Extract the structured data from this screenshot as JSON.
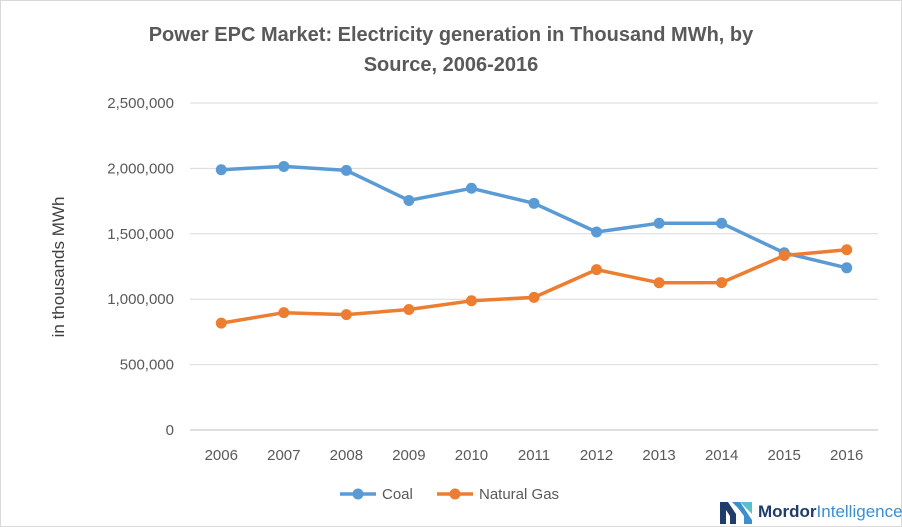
{
  "chart_data": {
    "type": "line",
    "title_lines": [
      "Power EPC Market: Electricity generation in Thousand  MWh, by",
      "Source, 2006-2016"
    ],
    "xlabel": "",
    "ylabel": "in thousands MWh",
    "categories": [
      "2006",
      "2007",
      "2008",
      "2009",
      "2010",
      "2011",
      "2012",
      "2013",
      "2014",
      "2015",
      "2016"
    ],
    "series": [
      {
        "name": "Coal",
        "color": "#5b9bd5",
        "values": [
          1990000,
          2015000,
          1985000,
          1755000,
          1848000,
          1733000,
          1514000,
          1581000,
          1581000,
          1355000,
          1240000
        ]
      },
      {
        "name": "Natural Gas",
        "color": "#ed7d31",
        "values": [
          817000,
          897000,
          882000,
          921000,
          988000,
          1014000,
          1226000,
          1126000,
          1127000,
          1334000,
          1378000
        ]
      }
    ],
    "ylim": [
      0,
      2500000
    ],
    "yticks": [
      0,
      500000,
      1000000,
      1500000,
      2000000,
      2500000
    ],
    "ytick_labels": [
      "0",
      "500,000",
      "1,000,000",
      "1,500,000",
      "2,000,000",
      "2,500,000"
    ],
    "grid": true,
    "legend_position": "bottom"
  },
  "logo": {
    "bold": "Mordor",
    "light": "Intelligence",
    "colors": [
      "#1f3c6b",
      "#3b8fd0",
      "#5bc0c8"
    ]
  }
}
